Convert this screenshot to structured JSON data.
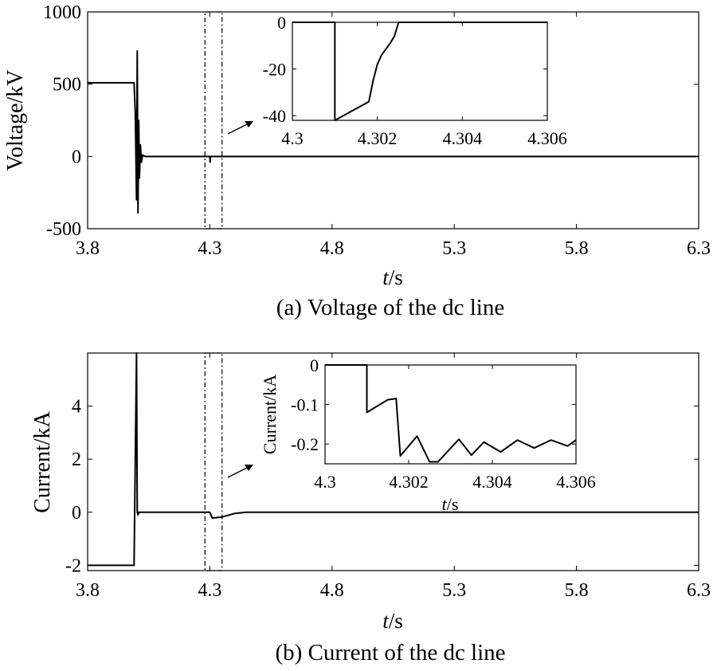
{
  "chart_data": [
    {
      "type": "line",
      "panel": "a",
      "caption": "(a) Voltage of the dc line",
      "xlabel_italic": "t",
      "xlabel_unit": "/s",
      "ylabel": "Voltage/kV",
      "xlim": [
        3.8,
        6.3
      ],
      "ylim": [
        -500,
        1000
      ],
      "xticks": [
        "3.8",
        "4.3",
        "4.8",
        "5.3",
        "5.8",
        "6.3"
      ],
      "yticks": [
        "1000",
        "500",
        "0",
        "-500"
      ],
      "grid": false,
      "zoom_window": [
        4.28,
        4.35
      ],
      "series": [
        {
          "x": [
            3.8,
            3.99,
            3.995,
            4.0,
            4.003,
            4.006,
            4.009,
            4.012,
            4.016,
            4.02,
            4.025,
            4.035,
            4.3,
            4.301,
            4.302,
            4.303,
            4.31,
            6.3
          ],
          "y": [
            510,
            510,
            300,
            -300,
            730,
            -390,
            250,
            -150,
            80,
            -40,
            10,
            0,
            0,
            -40,
            -20,
            0,
            0,
            0
          ]
        }
      ],
      "inset": {
        "xlim": [
          4.3,
          4.306
        ],
        "ylim": [
          -42,
          0
        ],
        "xticks": [
          "4.3",
          "4.302",
          "4.304",
          "4.306"
        ],
        "yticks": [
          "0",
          "-20",
          "-40"
        ],
        "series": [
          {
            "x": [
              4.3,
              4.3005,
              4.301,
              4.301,
              4.3018,
              4.3019,
              4.302,
              4.3021,
              4.3023,
              4.3024,
              4.3025,
              4.306
            ],
            "y": [
              0,
              0.2,
              0,
              -42,
              -34,
              -25,
              -18,
              -14,
              -9,
              -6,
              0,
              0
            ]
          }
        ]
      }
    },
    {
      "type": "line",
      "panel": "b",
      "caption": "(b) Current of the dc line",
      "xlabel_italic": "t",
      "xlabel_unit": "/s",
      "ylabel": "Current/kA",
      "xlim": [
        3.8,
        6.3
      ],
      "ylim": [
        -2.2,
        6
      ],
      "xticks": [
        "3.8",
        "4.3",
        "4.8",
        "5.3",
        "5.8",
        "6.3"
      ],
      "yticks": [
        "4",
        "2",
        "0",
        "-2"
      ],
      "grid": false,
      "zoom_window": [
        4.28,
        4.35
      ],
      "series": [
        {
          "x": [
            3.8,
            3.99,
            4.0,
            4.003,
            4.006,
            4.01,
            4.3,
            4.31,
            4.35,
            4.4,
            4.45,
            6.3
          ],
          "y": [
            -2,
            -2,
            6,
            0,
            -0.1,
            0,
            0,
            -0.22,
            -0.18,
            -0.05,
            0,
            0
          ]
        }
      ],
      "inset": {
        "ylabel": "Current/kA",
        "xlabel_italic": "t",
        "xlabel_unit": "/s",
        "xlim": [
          4.3,
          4.306
        ],
        "ylim": [
          -0.25,
          0
        ],
        "xticks": [
          "4.3",
          "4.302",
          "4.304",
          "4.306"
        ],
        "yticks": [
          "0",
          "-0.1",
          "-0.2"
        ],
        "series": [
          {
            "x": [
              4.3,
              4.301,
              4.301,
              4.3015,
              4.3017,
              4.3018,
              4.3022,
              4.3025,
              4.3027,
              4.3032,
              4.3035,
              4.3038,
              4.3042,
              4.3046,
              4.305,
              4.3054,
              4.3058,
              4.306
            ],
            "y": [
              0,
              0,
              -0.12,
              -0.088,
              -0.085,
              -0.23,
              -0.18,
              -0.245,
              -0.245,
              -0.188,
              -0.228,
              -0.195,
              -0.22,
              -0.19,
              -0.21,
              -0.19,
              -0.205,
              -0.19
            ]
          }
        ]
      }
    }
  ]
}
